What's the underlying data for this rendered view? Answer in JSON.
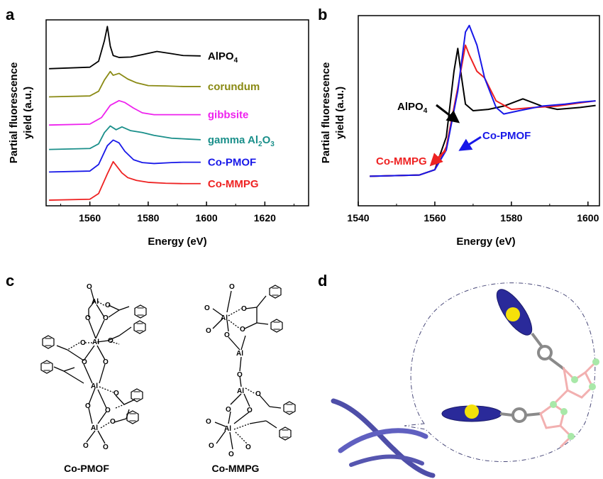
{
  "panels": {
    "a": "a",
    "b": "b",
    "c": "c",
    "d": "d"
  },
  "chart_data": [
    {
      "type": "line",
      "panel": "a",
      "xlabel": "Energy (eV)",
      "ylabel": "Partial fluorescence yield (a.u.)",
      "ylabel_lines": [
        "Partial fluorescence",
        "yield (a.u.)"
      ],
      "xlim": [
        1545,
        1635
      ],
      "x_ticks": [
        1560,
        1580,
        1600,
        1620
      ],
      "y_ticks": [],
      "grid": false,
      "series": [
        {
          "name": "AlPO4",
          "label_main": "AlPO",
          "label_sub": "4",
          "color": "#000000",
          "offset": 7.0,
          "x": [
            1546,
            1560,
            1563,
            1565,
            1566,
            1567,
            1568,
            1570,
            1574,
            1578,
            1583,
            1588,
            1592,
            1598
          ],
          "y": [
            0.0,
            0.08,
            0.4,
            1.5,
            2.25,
            1.2,
            0.7,
            0.6,
            0.62,
            0.75,
            0.92,
            0.8,
            0.7,
            0.68
          ]
        },
        {
          "name": "corundum",
          "color": "#8a8a14",
          "offset": 5.5,
          "x": [
            1546,
            1560,
            1563,
            1565,
            1567,
            1568,
            1570,
            1573,
            1576,
            1580,
            1586,
            1592,
            1598
          ],
          "y": [
            0.0,
            0.05,
            0.3,
            0.9,
            1.35,
            1.15,
            1.25,
            0.95,
            0.75,
            0.6,
            0.58,
            0.55,
            0.55
          ]
        },
        {
          "name": "gibbsite",
          "color": "#ee22ee",
          "offset": 4.0,
          "x": [
            1546,
            1560,
            1564,
            1567,
            1570,
            1572,
            1575,
            1578,
            1582,
            1586,
            1592,
            1598
          ],
          "y": [
            0.0,
            0.05,
            0.4,
            1.05,
            1.3,
            1.2,
            0.9,
            0.65,
            0.55,
            0.55,
            0.55,
            0.55
          ]
        },
        {
          "name": "gamma Al2O3",
          "label_main": "gamma Al",
          "label_sub": "2",
          "label_main2": "O",
          "label_sub2": "3",
          "color": "#1a8f8a",
          "offset": 2.7,
          "x": [
            1546,
            1560,
            1563,
            1565,
            1567,
            1569,
            1571,
            1574,
            1578,
            1582,
            1588,
            1594,
            1598
          ],
          "y": [
            0.0,
            0.05,
            0.3,
            0.9,
            1.25,
            1.05,
            1.2,
            1.0,
            0.9,
            0.75,
            0.6,
            0.55,
            0.52
          ]
        },
        {
          "name": "Co-PMOF",
          "color": "#1818e8",
          "offset": 1.5,
          "x": [
            1546,
            1560,
            1563,
            1566,
            1568,
            1570,
            1572,
            1575,
            1578,
            1582,
            1588,
            1592,
            1598
          ],
          "y": [
            0.0,
            0.05,
            0.4,
            1.4,
            1.7,
            1.55,
            1.1,
            0.65,
            0.5,
            0.45,
            0.5,
            0.52,
            0.52
          ]
        },
        {
          "name": "Co-MMPG",
          "color": "#ee2222",
          "offset": 0.0,
          "x": [
            1546,
            1560,
            1563,
            1566,
            1568,
            1569,
            1571,
            1573,
            1576,
            1580,
            1586,
            1592,
            1598
          ],
          "y": [
            0.0,
            0.05,
            0.35,
            1.4,
            2.05,
            1.85,
            1.45,
            1.2,
            1.05,
            0.95,
            0.9,
            0.88,
            0.88
          ]
        }
      ]
    },
    {
      "type": "line",
      "panel": "b",
      "xlabel": "Energy (eV)",
      "ylabel": "Partial fluorescence yield (a.u.)",
      "ylabel_lines": [
        "Partial fluorescence",
        "yield (a.u.)"
      ],
      "xlim": [
        1540,
        1603
      ],
      "x_ticks": [
        1540,
        1560,
        1580,
        1600
      ],
      "y_ticks": [],
      "grid": false,
      "series": [
        {
          "name": "AlPO4",
          "label_main": "AlPO",
          "label_sub": "4",
          "color": "#000000",
          "x": [
            1543,
            1556,
            1560,
            1563,
            1565,
            1566,
            1567,
            1568,
            1570,
            1574,
            1578,
            1583,
            1588,
            1592,
            1598,
            1602
          ],
          "y": [
            0.0,
            0.02,
            0.1,
            0.6,
            1.6,
            1.95,
            1.5,
            1.1,
            1.0,
            1.02,
            1.07,
            1.18,
            1.07,
            1.02,
            1.05,
            1.08
          ]
        },
        {
          "name": "Co-MMPG",
          "color": "#ee2222",
          "x": [
            1543,
            1556,
            1560,
            1563,
            1566,
            1568,
            1569,
            1571,
            1573,
            1576,
            1580,
            1586,
            1592,
            1598,
            1602
          ],
          "y": [
            0.0,
            0.02,
            0.1,
            0.45,
            1.35,
            2.0,
            1.85,
            1.6,
            1.5,
            1.15,
            1.02,
            1.05,
            1.07,
            1.12,
            1.15
          ]
        },
        {
          "name": "Co-PMOF",
          "color": "#1818e8",
          "x": [
            1543,
            1556,
            1560,
            1563,
            1566,
            1568,
            1569,
            1571,
            1573,
            1576,
            1578,
            1582,
            1588,
            1594,
            1598,
            1602
          ],
          "y": [
            0.0,
            0.02,
            0.1,
            0.4,
            1.3,
            2.2,
            2.3,
            2.0,
            1.5,
            1.05,
            0.95,
            1.0,
            1.07,
            1.1,
            1.13,
            1.15
          ]
        }
      ],
      "annotations": [
        {
          "text": "AlPO4",
          "main": "AlPO",
          "sub": "4",
          "color": "#000000"
        },
        {
          "text": "Co-MMPG",
          "color": "#ee2222"
        },
        {
          "text": "Co-PMOF",
          "color": "#1818e8"
        }
      ]
    }
  ],
  "panel_c": {
    "atom": "Al",
    "oxygen": "O",
    "captions": [
      "Co-PMOF",
      "Co-MMPG"
    ]
  },
  "panel_d": {
    "colors": {
      "ribbon": "#5a5ab0",
      "porphyrin": "#2a2a9a",
      "metal": "#f5e10a",
      "linker": "#8a8a8a",
      "oxygen": "#f2b0b0",
      "aluminum": "#a8e8a8"
    }
  }
}
